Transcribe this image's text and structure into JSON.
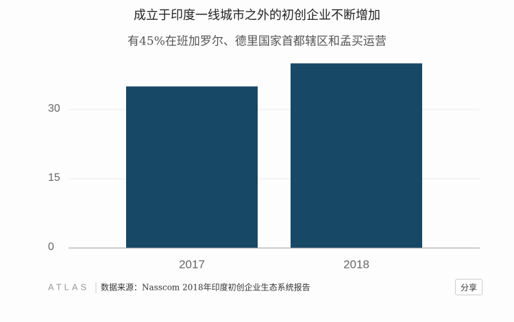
{
  "chart_data": {
    "type": "bar",
    "title": "成立于印度一线城市之外的初创企业不断增加",
    "subtitle": "有45%在班加罗尔、德里国家首都辖区和孟买运营",
    "categories": [
      "2017",
      "2018"
    ],
    "values": [
      35,
      40
    ],
    "color": "#174866",
    "ylim": [
      0,
      42
    ],
    "yticks": [
      0,
      15,
      30
    ],
    "grid": true,
    "logo": "ATLAS",
    "source": "数据来源：Nasscom 2018年印度初创企业生态系统报告",
    "share": "分享"
  }
}
